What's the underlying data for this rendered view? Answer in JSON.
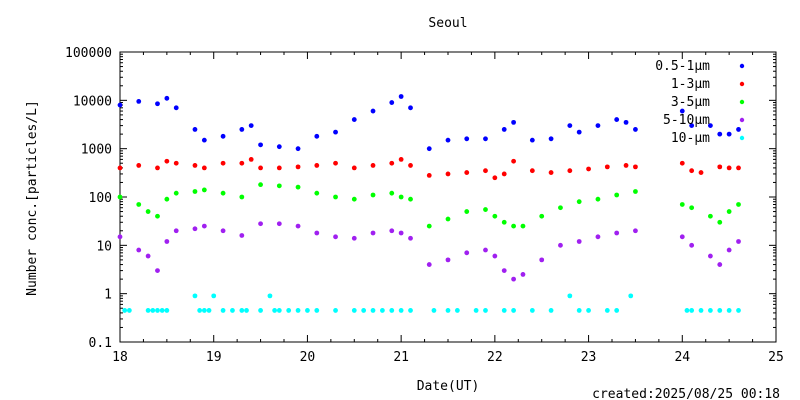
{
  "chart_data": {
    "type": "scatter",
    "title": "Seoul",
    "xlabel": "Date(UT)",
    "ylabel": "Number conc.[particles/L]",
    "footer": "created:2025/08/25 00:18",
    "xlim": [
      18,
      25
    ],
    "ylim": [
      0.1,
      100000
    ],
    "y_scale": "log",
    "grid": false,
    "legend_position": "top-right",
    "x_ticks": [
      18,
      19,
      20,
      21,
      22,
      23,
      24,
      25
    ],
    "x_tick_labels": [
      "18",
      "19",
      "20",
      "21",
      "22",
      "23",
      "24",
      "25"
    ],
    "y_ticks": [
      0.1,
      1,
      10,
      100,
      1000,
      10000,
      100000
    ],
    "y_tick_labels": [
      "0.1",
      "1",
      "10",
      "100",
      "1000",
      "10000",
      "100000"
    ],
    "series": [
      {
        "name": "0.5-1μm",
        "color": "#0000ff",
        "x": [
          18.0,
          18.2,
          18.4,
          18.5,
          18.6,
          18.8,
          18.9,
          19.1,
          19.3,
          19.4,
          19.5,
          19.7,
          19.9,
          20.1,
          20.3,
          20.5,
          20.7,
          20.9,
          21.0,
          21.1,
          21.3,
          21.5,
          21.7,
          21.9,
          22.1,
          22.2,
          22.4,
          22.6,
          22.8,
          22.9,
          23.1,
          23.3,
          23.4,
          23.5,
          24.0,
          24.1,
          24.3,
          24.4,
          24.5,
          24.6
        ],
        "y": [
          8000,
          9500,
          8500,
          11000,
          7000,
          2500,
          1500,
          1800,
          2500,
          3000,
          1200,
          1100,
          1000,
          1800,
          2200,
          4000,
          6000,
          9000,
          12000,
          7000,
          1000,
          1500,
          1600,
          1600,
          2500,
          3500,
          1500,
          1600,
          3000,
          2200,
          3000,
          4000,
          3500,
          2500,
          6000,
          3000,
          3000,
          2000,
          2000,
          2500
        ]
      },
      {
        "name": "1-3μm",
        "color": "#ff0000",
        "x": [
          18.0,
          18.2,
          18.4,
          18.5,
          18.6,
          18.8,
          18.9,
          19.1,
          19.3,
          19.4,
          19.5,
          19.7,
          19.9,
          20.1,
          20.3,
          20.5,
          20.7,
          20.9,
          21.0,
          21.1,
          21.3,
          21.5,
          21.7,
          21.9,
          22.0,
          22.1,
          22.2,
          22.4,
          22.6,
          22.8,
          23.0,
          23.2,
          23.4,
          23.5,
          24.0,
          24.1,
          24.2,
          24.4,
          24.5,
          24.6
        ],
        "y": [
          400,
          450,
          400,
          550,
          500,
          450,
          400,
          500,
          500,
          600,
          400,
          400,
          420,
          450,
          500,
          400,
          450,
          500,
          600,
          450,
          280,
          300,
          320,
          350,
          250,
          300,
          550,
          350,
          320,
          350,
          380,
          420,
          450,
          420,
          500,
          350,
          320,
          420,
          400,
          400
        ]
      },
      {
        "name": "3-5μm",
        "color": "#00ff00",
        "x": [
          18.0,
          18.2,
          18.3,
          18.4,
          18.5,
          18.6,
          18.8,
          18.9,
          19.1,
          19.3,
          19.5,
          19.7,
          19.9,
          20.1,
          20.3,
          20.5,
          20.7,
          20.9,
          21.0,
          21.1,
          21.3,
          21.5,
          21.7,
          21.9,
          22.0,
          22.1,
          22.2,
          22.3,
          22.5,
          22.7,
          22.9,
          23.1,
          23.3,
          23.5,
          24.0,
          24.1,
          24.3,
          24.4,
          24.5,
          24.6
        ],
        "y": [
          100,
          70,
          50,
          40,
          90,
          120,
          130,
          140,
          120,
          100,
          180,
          170,
          160,
          120,
          100,
          90,
          110,
          120,
          100,
          90,
          25,
          35,
          50,
          55,
          40,
          30,
          25,
          25,
          40,
          60,
          80,
          90,
          110,
          130,
          70,
          60,
          40,
          30,
          50,
          70
        ]
      },
      {
        "name": "5-10μm",
        "color": "#a020f0",
        "x": [
          18.0,
          18.2,
          18.3,
          18.4,
          18.5,
          18.6,
          18.8,
          18.9,
          19.1,
          19.3,
          19.5,
          19.7,
          19.9,
          20.1,
          20.3,
          20.5,
          20.7,
          20.9,
          21.0,
          21.1,
          21.3,
          21.5,
          21.7,
          21.9,
          22.0,
          22.1,
          22.2,
          22.3,
          22.5,
          22.7,
          22.9,
          23.1,
          23.3,
          23.5,
          24.0,
          24.1,
          24.3,
          24.4,
          24.5,
          24.6
        ],
        "y": [
          15,
          8,
          6,
          3,
          12,
          20,
          22,
          25,
          20,
          16,
          28,
          28,
          25,
          18,
          15,
          14,
          18,
          20,
          18,
          14,
          4,
          5,
          7,
          8,
          6,
          3,
          2,
          2.5,
          5,
          10,
          12,
          15,
          18,
          20,
          15,
          10,
          6,
          4,
          8,
          12
        ]
      },
      {
        "name": "10-μm",
        "color": "#00ffff",
        "x": [
          18.05,
          18.1,
          18.3,
          18.35,
          18.4,
          18.45,
          18.5,
          18.8,
          18.85,
          18.9,
          18.95,
          19.0,
          19.1,
          19.2,
          19.3,
          19.35,
          19.5,
          19.6,
          19.65,
          19.7,
          19.8,
          19.9,
          20.0,
          20.1,
          20.3,
          20.5,
          20.6,
          20.7,
          20.8,
          20.9,
          21.0,
          21.1,
          21.35,
          21.5,
          21.6,
          21.8,
          21.9,
          22.1,
          22.2,
          22.4,
          22.6,
          22.8,
          22.9,
          23.0,
          23.2,
          23.3,
          23.45,
          24.05,
          24.1,
          24.2,
          24.3,
          24.4,
          24.5,
          24.6
        ],
        "y": [
          0.45,
          0.45,
          0.45,
          0.45,
          0.45,
          0.45,
          0.45,
          0.9,
          0.45,
          0.45,
          0.45,
          0.9,
          0.45,
          0.45,
          0.45,
          0.45,
          0.45,
          0.9,
          0.45,
          0.45,
          0.45,
          0.45,
          0.45,
          0.45,
          0.45,
          0.45,
          0.45,
          0.45,
          0.45,
          0.45,
          0.45,
          0.45,
          0.45,
          0.45,
          0.45,
          0.45,
          0.45,
          0.45,
          0.45,
          0.45,
          0.45,
          0.9,
          0.45,
          0.45,
          0.45,
          0.45,
          0.9,
          0.45,
          0.45,
          0.45,
          0.45,
          0.45,
          0.45,
          0.45
        ]
      }
    ]
  }
}
